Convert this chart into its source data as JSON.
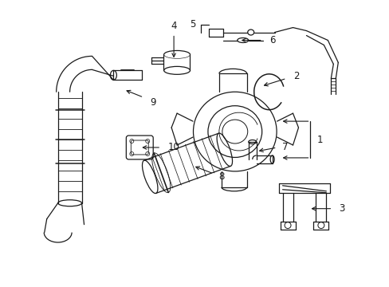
{
  "bg_color": "#ffffff",
  "line_color": "#1a1a1a",
  "fig_width": 4.89,
  "fig_height": 3.6,
  "dpi": 100,
  "xlim": [
    0,
    4.89
  ],
  "ylim": [
    0,
    3.6
  ]
}
